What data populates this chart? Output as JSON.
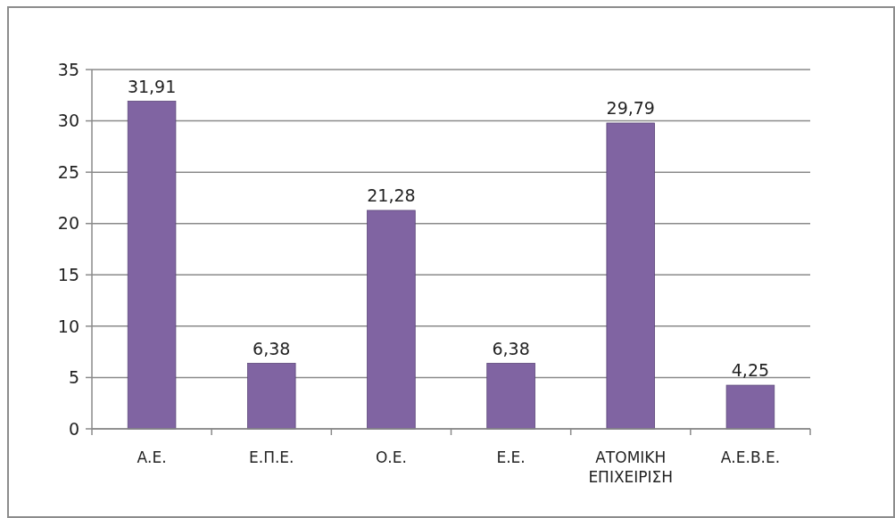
{
  "chart_data": {
    "type": "bar",
    "categories": [
      "Α.Ε.",
      "Ε.Π.Ε.",
      "Ο.Ε.",
      "Ε.Ε.",
      "ΑΤΟΜΙΚΗ ΕΠΙΧΕΙΡΙΣΗ",
      "Α.Ε.Β.Ε."
    ],
    "values": [
      31.91,
      6.38,
      21.28,
      6.38,
      29.79,
      4.25
    ],
    "value_labels": [
      "31,91",
      "6,38",
      "21,28",
      "6,38",
      "29,79",
      "4,25"
    ],
    "color": "#8064a2",
    "ylim": [
      0,
      35
    ],
    "yticks": [
      0,
      5,
      10,
      15,
      20,
      25,
      30,
      35
    ],
    "grid": "y"
  }
}
